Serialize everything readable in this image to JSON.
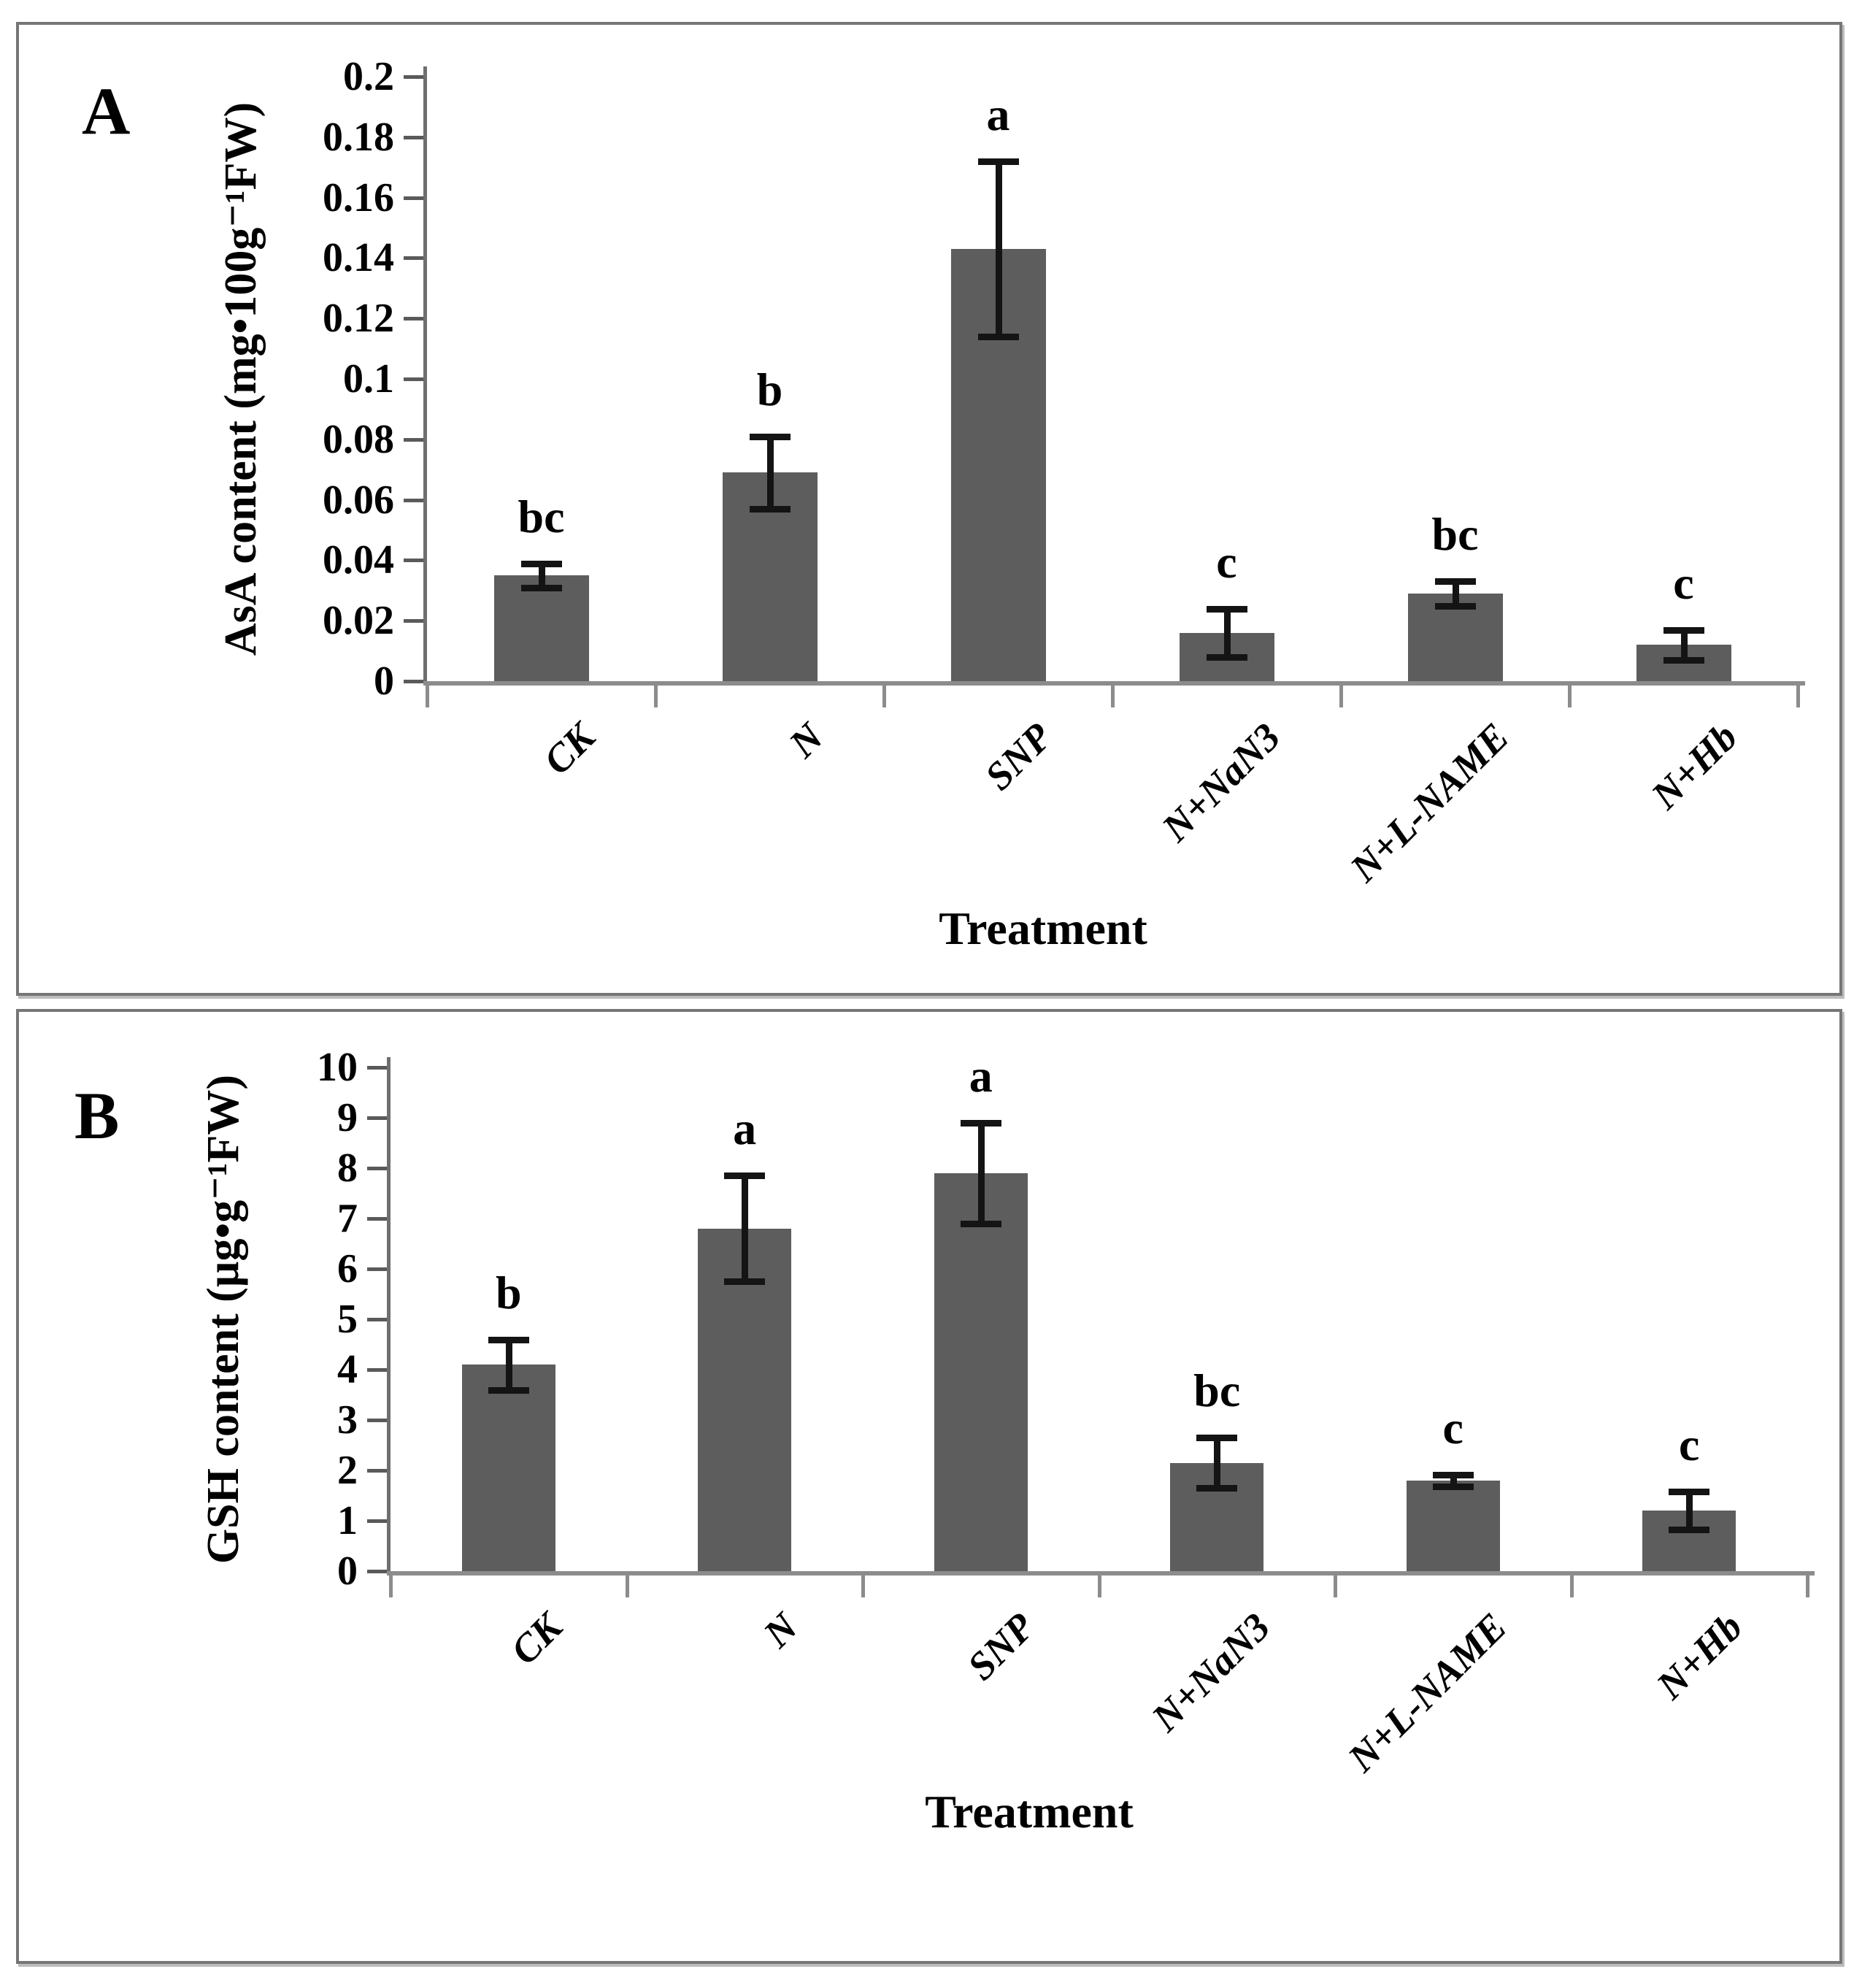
{
  "chart_data": [
    {
      "type": "bar",
      "panel_letter": "A",
      "title": "",
      "xlabel": "Treatment",
      "ylabel": "AsA content (mg•100g⁻¹FW)",
      "categories": [
        "CK",
        "N",
        "SNP",
        "N+NaN3",
        "N+L-NAME",
        "N+Hb"
      ],
      "values": [
        0.035,
        0.069,
        0.143,
        0.016,
        0.029,
        0.012
      ],
      "errors": [
        0.004,
        0.012,
        0.029,
        0.008,
        0.004,
        0.005
      ],
      "sig_letters": [
        "bc",
        "b",
        "a",
        "c",
        "bc",
        "c"
      ],
      "ylim": [
        0,
        0.2
      ],
      "ytick_labels": [
        "0",
        "0.02",
        "0.04",
        "0.06",
        "0.08",
        "0.1",
        "0.12",
        "0.14",
        "0.16",
        "0.18",
        "0.2"
      ],
      "grid": "off",
      "legend": "none"
    },
    {
      "type": "bar",
      "panel_letter": "B",
      "title": "",
      "xlabel": "Treatment",
      "ylabel": "GSH content (µg•g⁻¹FW)",
      "categories": [
        "CK",
        "N",
        "SNP",
        "N+NaN3",
        "N+L-NAME",
        "N+Hb"
      ],
      "values": [
        4.1,
        6.8,
        7.9,
        2.15,
        1.8,
        1.2
      ],
      "errors": [
        0.5,
        1.05,
        1.0,
        0.5,
        0.12,
        0.38
      ],
      "sig_letters": [
        "b",
        "a",
        "a",
        "bc",
        "c",
        "c"
      ],
      "ylim": [
        0,
        10
      ],
      "ytick_labels": [
        "0",
        "1",
        "2",
        "3",
        "4",
        "5",
        "6",
        "7",
        "8",
        "9",
        "10"
      ],
      "grid": "off",
      "legend": "none"
    }
  ],
  "colors": {
    "bar": "#5d5d5d",
    "axis": "#8c8c8c",
    "error_bar": "#141414",
    "text": "#000000",
    "frame": "#767676"
  }
}
